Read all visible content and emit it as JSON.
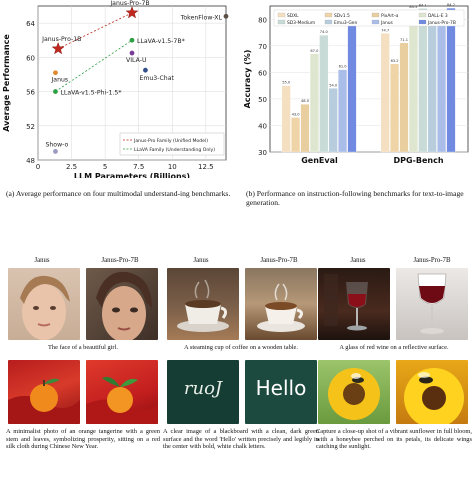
{
  "chart_a": {
    "type": "scatter",
    "xlabel": "LLM Parameters (Billions)",
    "ylabel": "Average Performance",
    "xlim": [
      0,
      14
    ],
    "ylim": [
      48,
      66
    ],
    "xticks": [
      "0",
      "2.5",
      "5",
      "7.5",
      "10",
      "12.5"
    ],
    "yticks": [
      "48",
      "52",
      "56",
      "60",
      "64"
    ],
    "points": [
      {
        "name": "Janus-Pro-7B",
        "x": 7.0,
        "y": 65.2,
        "color": "#c0281e",
        "marker": "star"
      },
      {
        "name": "Janus-Pro-1B",
        "x": 1.5,
        "y": 61.0,
        "color": "#c0281e",
        "marker": "star"
      },
      {
        "name": "Janus",
        "x": 1.3,
        "y": 58.2,
        "color": "#e08a2c",
        "marker": "dot"
      },
      {
        "name": "TokenFlow-XL",
        "x": 14.0,
        "y": 64.8,
        "color": "#5a4f46",
        "marker": "dot"
      },
      {
        "name": "LLaVA-v1.5-7B*",
        "x": 7.0,
        "y": 62.0,
        "color": "#2ea043",
        "marker": "dot"
      },
      {
        "name": "VILA-U",
        "x": 7.0,
        "y": 60.5,
        "color": "#7a3c9a",
        "marker": "dot"
      },
      {
        "name": "Emu3-Chat",
        "x": 8.0,
        "y": 58.5,
        "color": "#34508a",
        "marker": "dot"
      },
      {
        "name": "LLaVA-v1.5-Phi-1.5*",
        "x": 1.3,
        "y": 56.0,
        "color": "#2ea043",
        "marker": "dot"
      },
      {
        "name": "Show-o",
        "x": 1.3,
        "y": 49.0,
        "color": "#9a9ac2",
        "marker": "dot"
      }
    ],
    "legend": [
      "Janus-Pro Family (Unified Model)",
      "LLaVA Family (Understanding Only)"
    ]
  },
  "chart_b": {
    "type": "bar",
    "ylabel": "Accuracy (%)",
    "ylim": [
      30,
      85
    ],
    "yticks": [
      "30",
      "40",
      "50",
      "60",
      "70",
      "80"
    ],
    "categories": [
      "GenEval",
      "DPG-Bench"
    ],
    "series": [
      {
        "name": "SDXL",
        "color": "#f4dfc1",
        "values": [
          55,
          74.7
        ]
      },
      {
        "name": "SDv1.5",
        "color": "#efd4a8",
        "values": [
          43,
          63.2
        ]
      },
      {
        "name": "PixArt-α",
        "color": "#e9cfa0",
        "values": [
          48,
          71.1
        ]
      },
      {
        "name": "DALL-E 3",
        "color": "#dfe6d0",
        "values": [
          67,
          83.5
        ]
      },
      {
        "name": "SD3-Medium",
        "color": "#c9dbd6",
        "values": [
          74,
          84.1
        ]
      },
      {
        "name": "Emu3-Gen",
        "color": "#b7cddd",
        "values": [
          54,
          80.6
        ]
      },
      {
        "name": "Janus",
        "color": "#a9bde8",
        "values": [
          61,
          79.7
        ]
      },
      {
        "name": "Janus-Pro-7B",
        "color": "#6f8ae0",
        "values": [
          80,
          84.2
        ]
      }
    ],
    "bar_labels": [
      [
        "55.0",
        "43.0",
        "48.0",
        "67.0",
        "74.0",
        "54.0",
        "61.0",
        "80.0"
      ],
      [
        "74.7",
        "63.2",
        "71.1",
        "83.5",
        "84.1",
        "80.6",
        "79.7",
        "84.2"
      ]
    ]
  },
  "captions": {
    "a": "(a) Average performance on four multimodal understand-ing benchmarks.",
    "b": "(b) Performance on instruction-following benchmarks for text-to-image generation."
  },
  "gallery": {
    "row1": [
      {
        "left": "Janus",
        "right": "Janus-Pro-7B",
        "caption": "The face of a beautiful girl."
      },
      {
        "left": "Janus",
        "right": "Janus-Pro-7B",
        "caption": "A steaming cup of coffee on a wooden table."
      },
      {
        "left": "Janus",
        "right": "Janus-Pro-7B",
        "caption": "A glass of red wine on a reflective surface."
      }
    ],
    "row2": [
      {
        "caption": "A minimalist photo of an orange tangerine with a green stem and leaves, symbolizing prosperity, sitting on a red silk cloth during Chinese New Year."
      },
      {
        "caption": "A clear image of a blackboard with a clean, dark green surface and the word 'Hello' written precisely and legibly in the center with bold, white chalk letters."
      },
      {
        "caption": "Capture a close-up shot of a vibrant sunflower in full bloom, with a honeybee perched on its petals, its delicate wings catching the sunlight."
      }
    ],
    "board_left": "ruoJ",
    "board_right": "Hello"
  }
}
